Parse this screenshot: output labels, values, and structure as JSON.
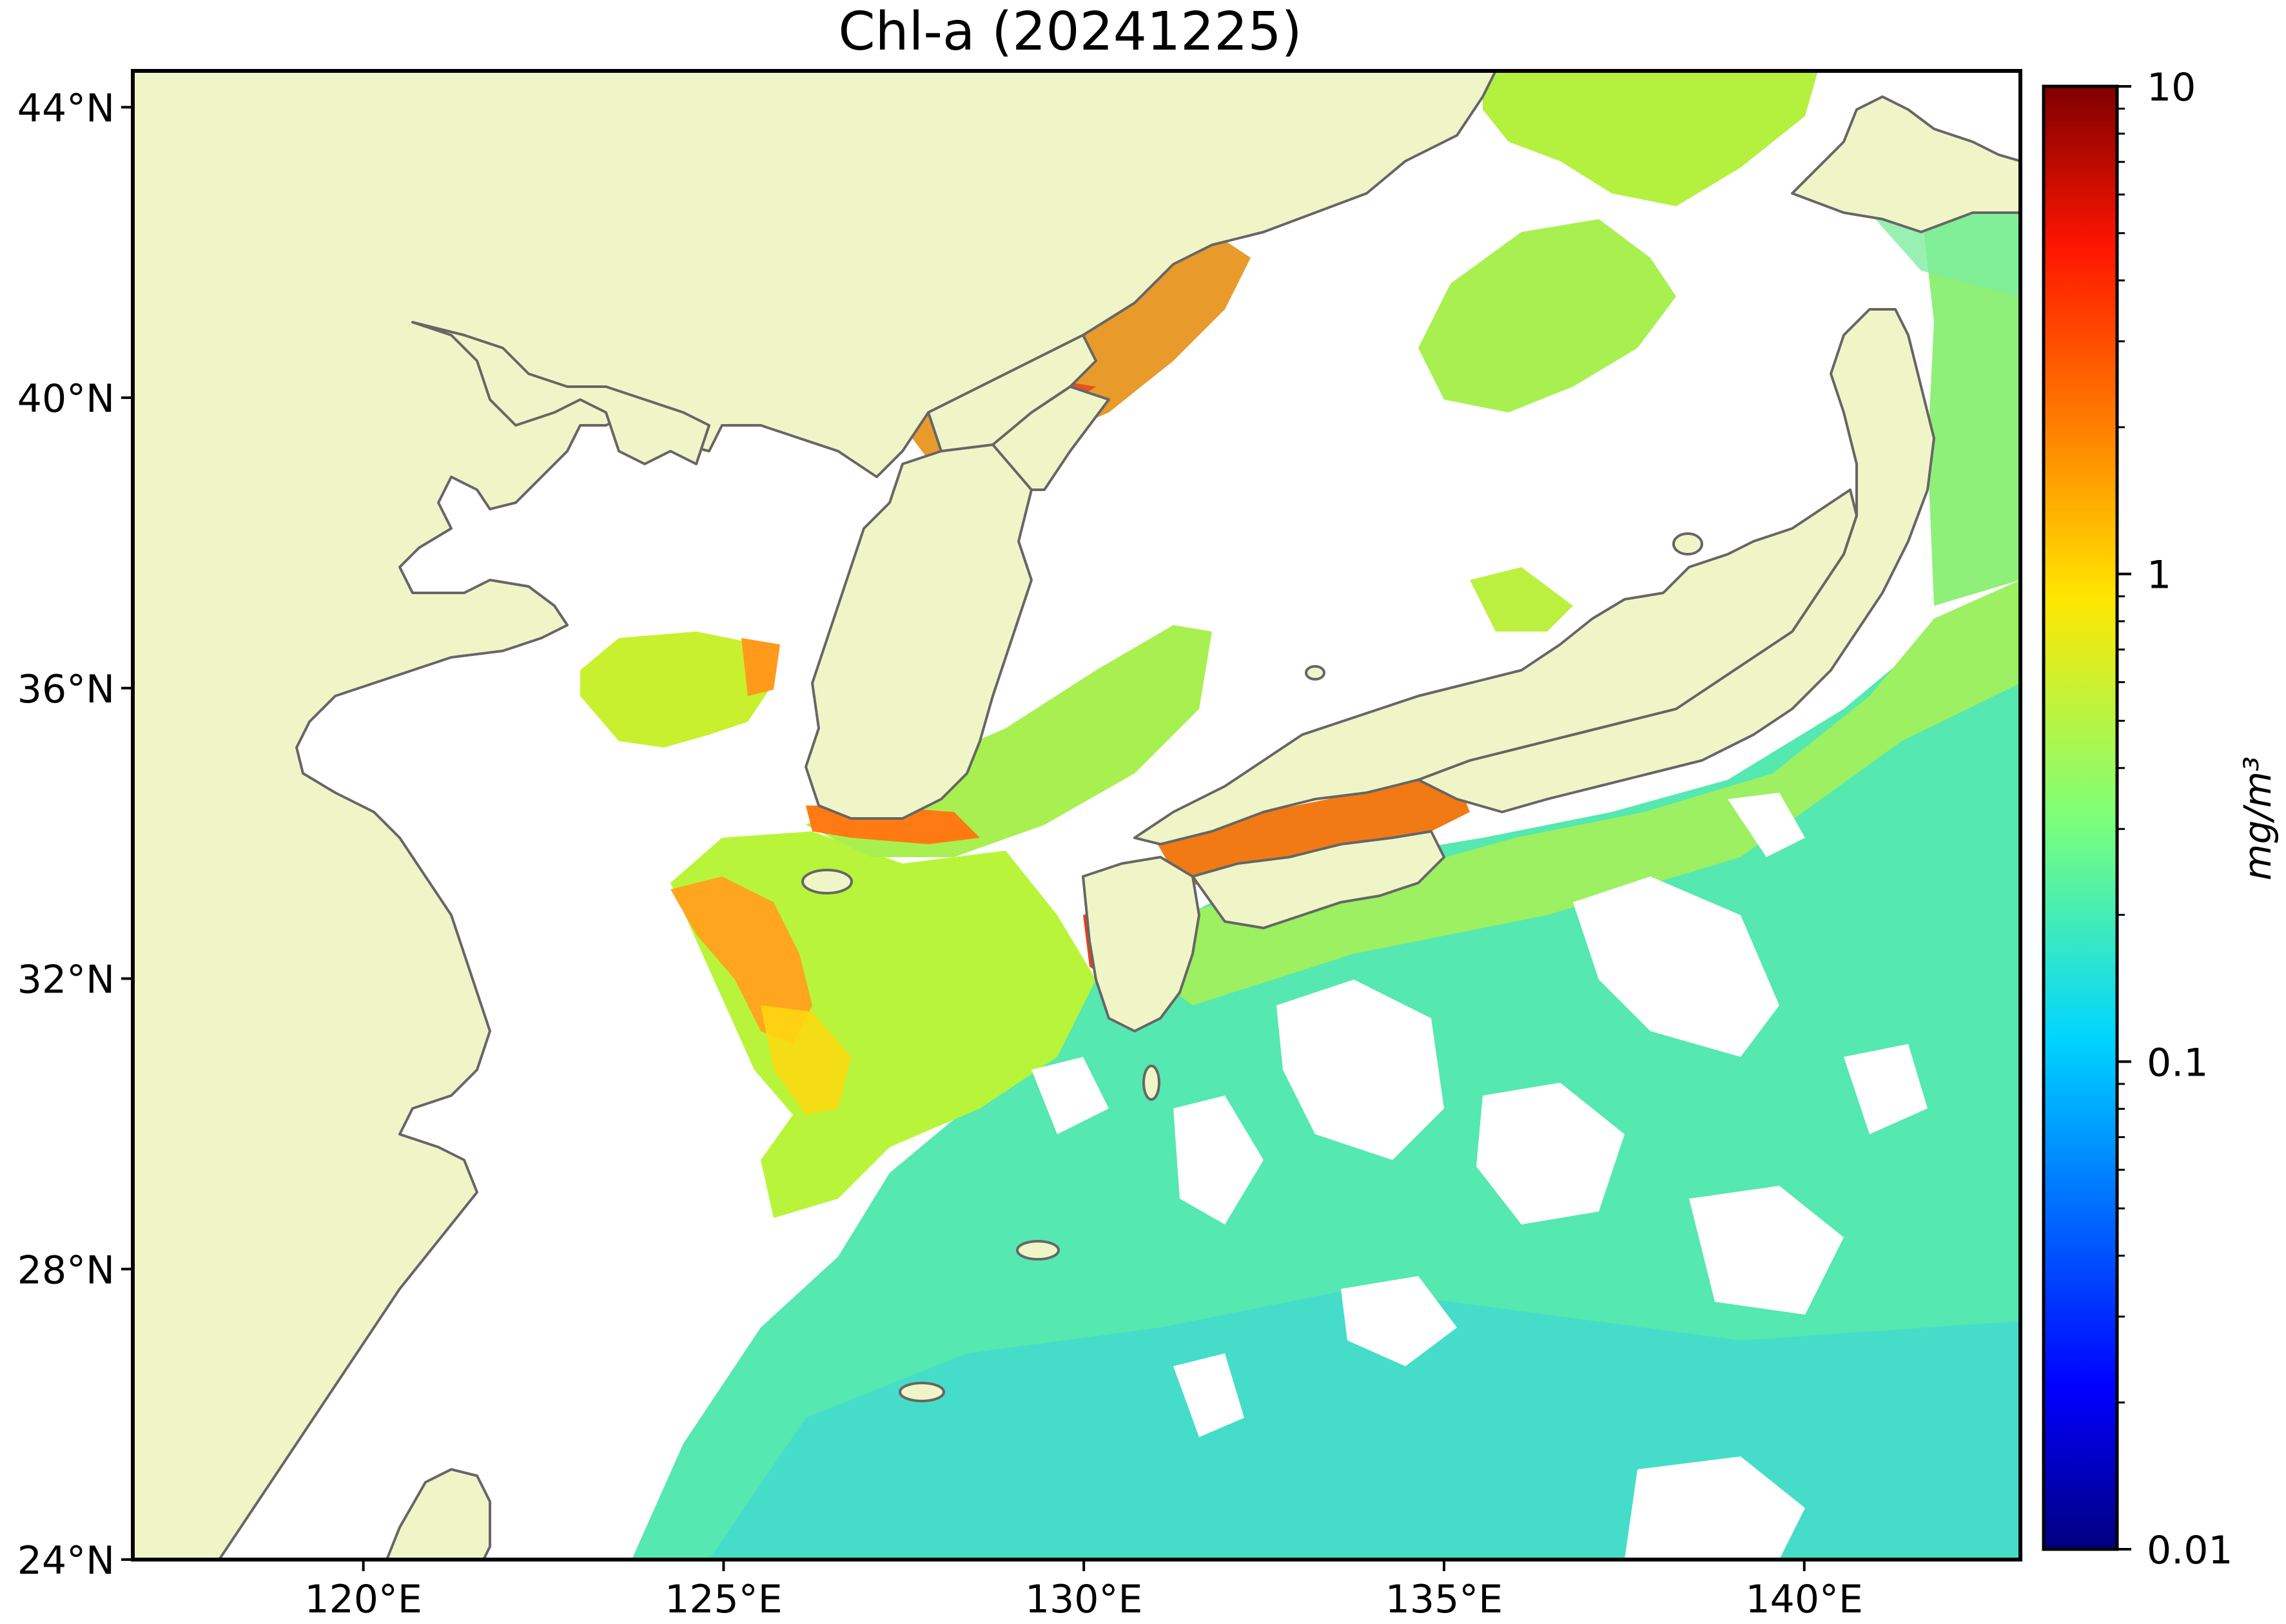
{
  "title": "Chl-a (20241225)",
  "map": {
    "lon_range": [
      116.8,
      143.0
    ],
    "lat_range": [
      24,
      44.5
    ],
    "x_ticks": [
      120,
      125,
      130,
      135,
      140
    ],
    "y_ticks": [
      24,
      28,
      32,
      36,
      40,
      44
    ],
    "x_tick_labels": [
      "120°E",
      "125°E",
      "130°E",
      "135°E",
      "140°E"
    ],
    "y_tick_labels": [
      "24°N",
      "28°N",
      "32°N",
      "36°N",
      "40°N",
      "44°N"
    ],
    "colors": {
      "land": "#f0f5c8",
      "coastline": "#666666",
      "cloud_nodata": "#ffffff",
      "frame": "#000000"
    }
  },
  "colorbar": {
    "colormap": "jet",
    "scale": "log",
    "range": [
      0.01,
      10
    ],
    "tick_labels": [
      "10",
      "1",
      "0.1",
      "0.01"
    ],
    "tick_values": [
      10,
      1,
      0.1,
      0.01
    ],
    "unit_label": "mg/m³"
  }
}
